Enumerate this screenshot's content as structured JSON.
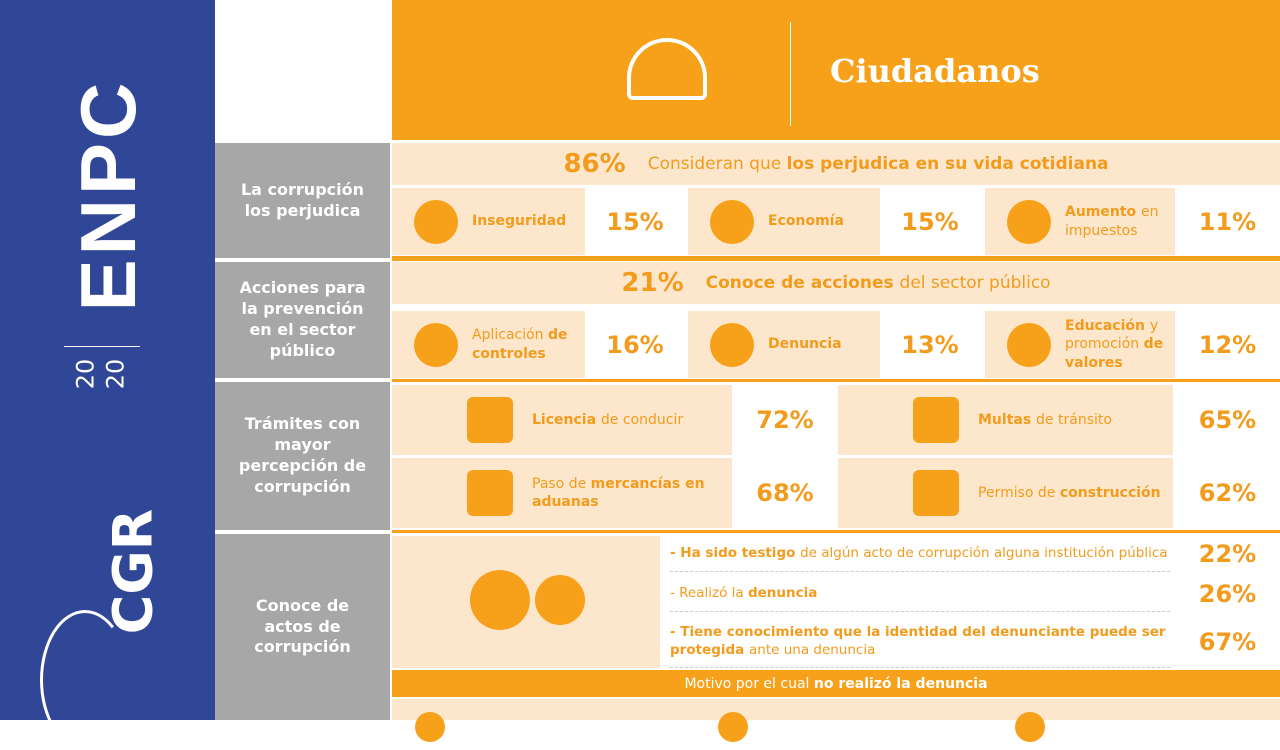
{
  "sidebar": {
    "brand": "ENPC",
    "year_top": "20",
    "year_bottom": "20",
    "logo": "CGR"
  },
  "header": {
    "title": "Ciudadanos"
  },
  "sections": [
    {
      "label": "La corrupción los perjudica",
      "headline": {
        "value": "86%",
        "parts": [
          {
            "text": "Consideran que ",
            "bold": false
          },
          {
            "text": "los perjudica en su vida cotidiana",
            "bold": true
          }
        ]
      },
      "items": [
        {
          "parts": [
            {
              "text": "Inseguridad",
              "bold": true
            }
          ],
          "value": "15%"
        },
        {
          "parts": [
            {
              "text": "Economía",
              "bold": true
            }
          ],
          "value": "15%"
        },
        {
          "parts": [
            {
              "text": "Aumento ",
              "bold": true
            },
            {
              "text": "en impuestos",
              "bold": false
            }
          ],
          "value": "11%"
        }
      ]
    },
    {
      "label": "Acciones para la prevención en el sector público",
      "headline": {
        "value": "21%",
        "parts": [
          {
            "text": "Conoce de acciones ",
            "bold": true
          },
          {
            "text": "del sector público",
            "bold": false
          }
        ]
      },
      "items": [
        {
          "parts": [
            {
              "text": "Aplicación ",
              "bold": false
            },
            {
              "text": "de controles",
              "bold": true
            }
          ],
          "value": "16%"
        },
        {
          "parts": [
            {
              "text": "Denuncia",
              "bold": true
            }
          ],
          "value": "13%"
        },
        {
          "parts": [
            {
              "text": "Educación ",
              "bold": true
            },
            {
              "text": "y promoción ",
              "bold": false
            },
            {
              "text": "de valores",
              "bold": true
            }
          ],
          "value": "12%"
        }
      ]
    },
    {
      "label": "Trámites con mayor percepción de corrupción",
      "items": [
        {
          "parts": [
            {
              "text": "Licencia ",
              "bold": true
            },
            {
              "text": "de conducir",
              "bold": false
            }
          ],
          "value": "72%"
        },
        {
          "parts": [
            {
              "text": "Multas ",
              "bold": true
            },
            {
              "text": "de tránsito",
              "bold": false
            }
          ],
          "value": "65%"
        },
        {
          "parts": [
            {
              "text": "Paso de ",
              "bold": false
            },
            {
              "text": "mercancías en aduanas",
              "bold": true
            }
          ],
          "value": "68%"
        },
        {
          "parts": [
            {
              "text": "Permiso de ",
              "bold": false
            },
            {
              "text": "construcción",
              "bold": true
            }
          ],
          "value": "62%"
        }
      ]
    },
    {
      "label": "Conoce de actos de corrupción",
      "items": [
        {
          "parts": [
            {
              "text": "- Ha sido testigo ",
              "bold": true
            },
            {
              "text": "de algún acto de corrupción alguna institución pública",
              "bold": false
            }
          ],
          "value": "22%"
        },
        {
          "parts": [
            {
              "text": "- Realizó la ",
              "bold": false
            },
            {
              "text": "denuncia",
              "bold": true
            }
          ],
          "value": "26%"
        },
        {
          "parts": [
            {
              "text": "- Tiene conocimiento que la identidad del denunciante puede ser protegida ",
              "bold": true
            },
            {
              "text": "ante una denuncia",
              "bold": false
            }
          ],
          "value": "67%"
        }
      ],
      "footer": {
        "parts": [
          {
            "text": "Motivo por el cual ",
            "bold": false
          },
          {
            "text": "no realizó la denuncia",
            "bold": true
          }
        ]
      }
    }
  ]
}
